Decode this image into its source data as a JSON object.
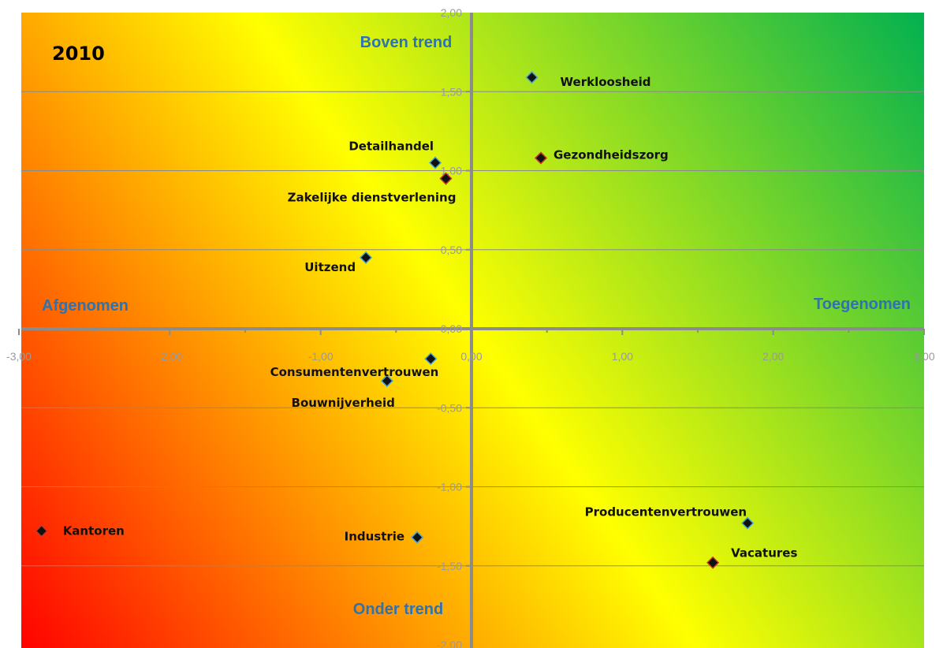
{
  "chart_data": {
    "type": "scatter",
    "title": "2010",
    "xlim": [
      -3,
      3
    ],
    "ylim": [
      -2,
      2
    ],
    "x_ticks": [
      "-3,00",
      "-2,00",
      "-1,00",
      "0,00",
      "1,00",
      "2,00",
      "3,00"
    ],
    "y_ticks": [
      "2,00",
      "1,50",
      "1,00",
      "0,50",
      "0,00",
      "-0,50",
      "-1,00",
      "-1,50",
      "-2,00"
    ],
    "grid": "horizontal",
    "quadrant_labels": {
      "top": "Boven trend",
      "bottom": "Onder trend",
      "left": "Afgenomen",
      "right": "Toegenomen"
    },
    "colors": {
      "negative": "#ff0000",
      "neutral": "#ffff00",
      "positive": "#00b050",
      "quadrant_text": "#2f72b0"
    },
    "points": [
      {
        "label": "Werkloosheid",
        "x": 0.4,
        "y": 1.59,
        "edge": "#4aa3d8"
      },
      {
        "label": "Gezondheidszorg",
        "x": 0.46,
        "y": 1.08,
        "edge": "#c0392b"
      },
      {
        "label": "Detailhandel",
        "x": -0.24,
        "y": 1.05,
        "edge": "#4aa3d8"
      },
      {
        "label": "Zakelijke dienstverlening",
        "x": -0.17,
        "y": 0.95,
        "edge": "#c0392b"
      },
      {
        "label": "Uitzend",
        "x": -0.7,
        "y": 0.45,
        "edge": "#4aa3d8"
      },
      {
        "label": "Consumentenvertrouwen",
        "x": -0.27,
        "y": -0.19,
        "edge": "#4aa3d8"
      },
      {
        "label": "Bouwnijverheid",
        "x": -0.56,
        "y": -0.33,
        "edge": "#4aa3d8"
      },
      {
        "label": "Kantoren",
        "x": -2.85,
        "y": -1.28,
        "edge": "#c0392b"
      },
      {
        "label": "Industrie",
        "x": -0.36,
        "y": -1.32,
        "edge": "#4aa3d8"
      },
      {
        "label": "Producentenvertrouwen",
        "x": 1.83,
        "y": -1.23,
        "edge": "#4aa3d8"
      },
      {
        "label": "Vacatures",
        "x": 1.6,
        "y": -1.48,
        "edge": "#c0392b"
      }
    ]
  }
}
